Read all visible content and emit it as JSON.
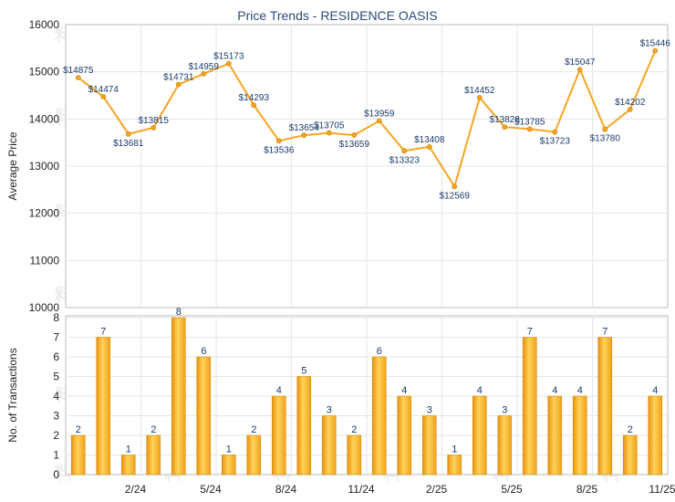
{
  "chart_data": [
    {
      "type": "line",
      "title": "Price Trends - RESIDENCE OASIS",
      "xlabel": "",
      "ylabel": "Average Price",
      "ylim": [
        10000,
        16000
      ],
      "yticks": [
        "10000",
        "11000",
        "12000",
        "13000",
        "14000",
        "15000",
        "16000"
      ],
      "series": [
        {
          "name": "Average Price",
          "values": [
            14875,
            14474,
            13681,
            13815,
            14731,
            14959,
            15173,
            14293,
            13536,
            13654,
            13705,
            13659,
            13959,
            13323,
            13408,
            12569,
            14452,
            13828,
            13785,
            13723,
            15047,
            13780,
            14202,
            15446
          ],
          "labels": [
            "$14875",
            "$14474",
            "$13681",
            "$13815",
            "$14731",
            "$14959",
            "$15173",
            "$14293",
            "$13536",
            "$13654",
            "$13705",
            "$13659",
            "$13959",
            "$13323",
            "$13408",
            "$12569",
            "$14452",
            "$13828",
            "$13785",
            "$13723",
            "$15047",
            "$13780",
            "$14202",
            "$15446"
          ]
        }
      ],
      "color": "#f5a623"
    },
    {
      "type": "bar",
      "xlabel": "",
      "ylabel": "No. of Transactions",
      "ylim": [
        0,
        8
      ],
      "yticks": [
        "0",
        "1",
        "2",
        "3",
        "4",
        "5",
        "6",
        "7",
        "8"
      ],
      "x_tick_labels": [
        "2/24",
        "5/24",
        "8/24",
        "11/24",
        "2/25",
        "5/25",
        "8/25",
        "11/25"
      ],
      "values": [
        2,
        7,
        1,
        2,
        8,
        6,
        1,
        2,
        4,
        5,
        3,
        2,
        6,
        4,
        3,
        1,
        4,
        3,
        7,
        4,
        4,
        7,
        2,
        4
      ],
      "labels": [
        "2",
        "7",
        "1",
        "2",
        "8",
        "6",
        "1",
        "2",
        "4",
        "5",
        "3",
        "2",
        "6",
        "4",
        "3",
        "1",
        "4",
        "3",
        "7",
        "4",
        "4",
        "7",
        "2",
        "4"
      ],
      "color": "#f5a623"
    }
  ],
  "watermark": "料一"
}
